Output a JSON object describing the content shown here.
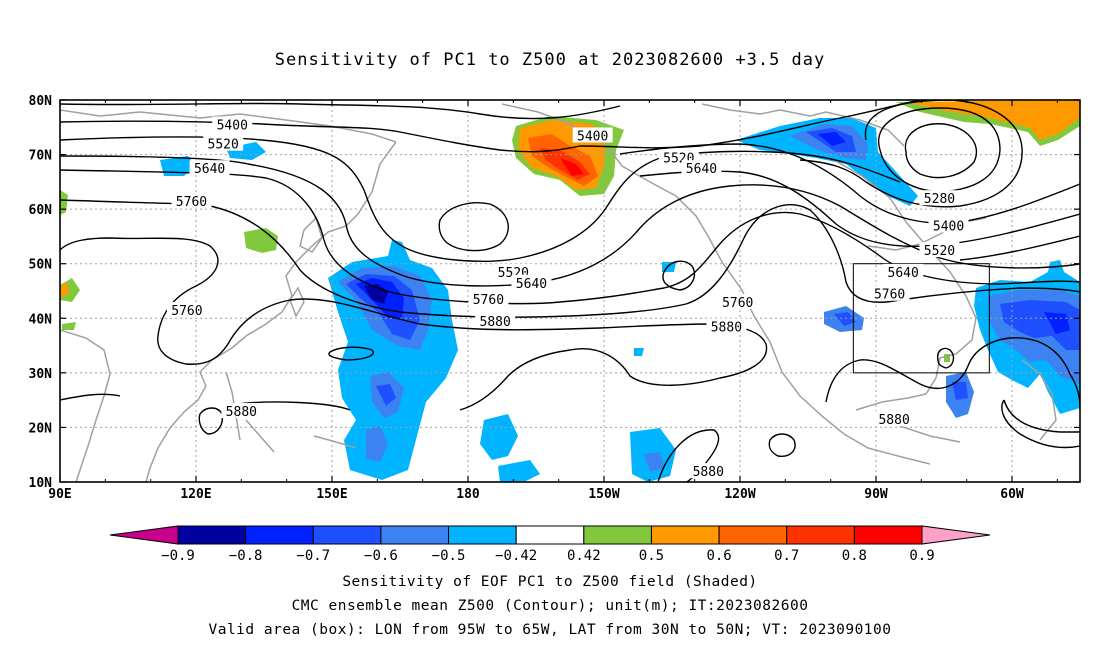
{
  "title": "Sensitivity of PC1 to Z500 at 2023082600 +3.5 day",
  "lat_labels": [
    "80N",
    "70N",
    "60N",
    "50N",
    "40N",
    "30N",
    "20N",
    "10N"
  ],
  "lon_labels": [
    "90E",
    "120E",
    "150E",
    "180",
    "150W",
    "120W",
    "90W",
    "60W"
  ],
  "contour_labels": [
    {
      "text": "5400",
      "lon": 128,
      "lat": 75.5
    },
    {
      "text": "5520",
      "lon": 126,
      "lat": 72
    },
    {
      "text": "5640",
      "lon": 123,
      "lat": 67.5
    },
    {
      "text": "5760",
      "lon": 119,
      "lat": 61.5
    },
    {
      "text": "5760",
      "lon": 118,
      "lat": 41.5
    },
    {
      "text": "5880",
      "lon": 130,
      "lat": 23
    },
    {
      "text": "5400",
      "lon": -152.5,
      "lat": 73.5
    },
    {
      "text": "5520",
      "lon": -133.5,
      "lat": 69.5
    },
    {
      "text": "5640",
      "lon": -128.5,
      "lat": 67.5
    },
    {
      "text": "5520",
      "lon": -170,
      "lat": 48.5
    },
    {
      "text": "5640",
      "lon": -166,
      "lat": 46.5
    },
    {
      "text": "5760",
      "lon": -175.5,
      "lat": 43.5
    },
    {
      "text": "5880",
      "lon": -174,
      "lat": 39.5
    },
    {
      "text": "5760",
      "lon": -120.5,
      "lat": 43
    },
    {
      "text": "5880",
      "lon": -123,
      "lat": 38.5
    },
    {
      "text": "5880",
      "lon": -127,
      "lat": 12
    },
    {
      "text": "5880",
      "lon": -86,
      "lat": 21.5
    },
    {
      "text": "5280",
      "lon": -76,
      "lat": 62
    },
    {
      "text": "5400",
      "lon": -74,
      "lat": 57
    },
    {
      "text": "5520",
      "lon": -76,
      "lat": 52.5
    },
    {
      "text": "5640",
      "lon": -84,
      "lat": 48.5
    },
    {
      "text": "5760",
      "lon": -87,
      "lat": 44.5
    }
  ],
  "colorbar": {
    "labels": [
      "-0.9",
      "-0.8",
      "-0.7",
      "-0.6",
      "-0.5",
      "-0.42",
      "0.42",
      "0.5",
      "0.6",
      "0.7",
      "0.8",
      "0.9"
    ],
    "colors": [
      "#0000a0",
      "#0020ff",
      "#1e50ff",
      "#3c82f0",
      "#00b4ff",
      "#ffffff",
      "#82c83c",
      "#ff9900",
      "#ff6400",
      "#ff3200",
      "#ff0000"
    ],
    "low_color": "#c8008c",
    "high_color": "#ffa0c8"
  },
  "caption": [
    "Sensitivity of EOF PC1 to Z500 field (Shaded)",
    "CMC ensemble mean Z500 (Contour); unit(m); IT:2023082600",
    "Valid area (box): LON from 95W to 65W, LAT from 30N to 50N; VT: 2023090100"
  ],
  "valid_box": {
    "lon_min": -95,
    "lon_max": -65,
    "lat_min": 30,
    "lat_max": 50
  }
}
